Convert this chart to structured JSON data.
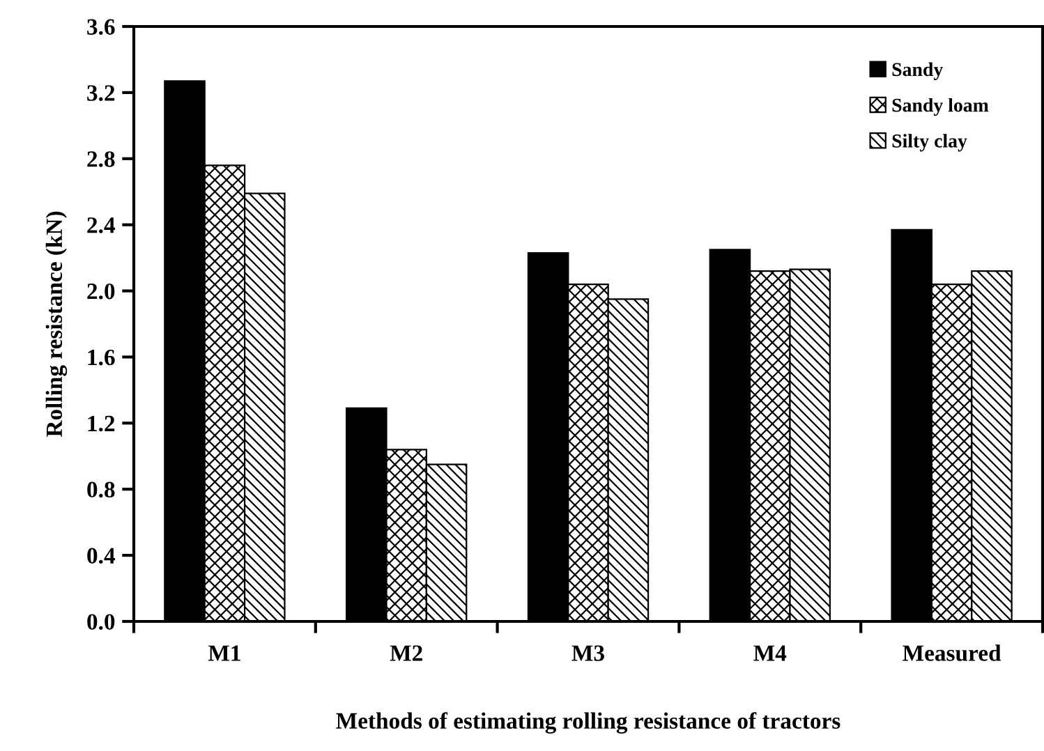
{
  "chart_data": {
    "type": "bar",
    "xlabel": "Methods of estimating rolling resistance of tractors",
    "ylabel": "Rolling resistance (kN)",
    "categories": [
      "M1",
      "M2",
      "M3",
      "M4",
      "Measured"
    ],
    "series": [
      {
        "name": "Sandy",
        "color": "#000000",
        "values": [
          3.27,
          1.29,
          2.23,
          2.25,
          2.37
        ]
      },
      {
        "name": "Sandy loam",
        "color": "#000000",
        "values": [
          2.76,
          1.04,
          2.04,
          2.12,
          2.04
        ]
      },
      {
        "name": "Silty clay",
        "color": "#000000",
        "values": [
          2.59,
          0.95,
          1.95,
          2.13,
          2.12
        ]
      }
    ],
    "ylim": [
      0,
      3.6
    ],
    "yticks": [
      {
        "value": 0,
        "label": "0.0"
      },
      {
        "value": 0.4,
        "label": "0.4"
      },
      {
        "value": 0.8,
        "label": "0.8"
      },
      {
        "value": 1.2,
        "label": "1.2"
      },
      {
        "value": 1.6,
        "label": "1.6"
      },
      {
        "value": 2.0,
        "label": "2.0"
      },
      {
        "value": 2.4,
        "label": "2.4"
      },
      {
        "value": 2.8,
        "label": "2.8"
      },
      {
        "value": 3.2,
        "label": "3.2"
      },
      {
        "value": 3.6,
        "label": "3.6"
      }
    ],
    "grid": false,
    "legend": "top right"
  }
}
